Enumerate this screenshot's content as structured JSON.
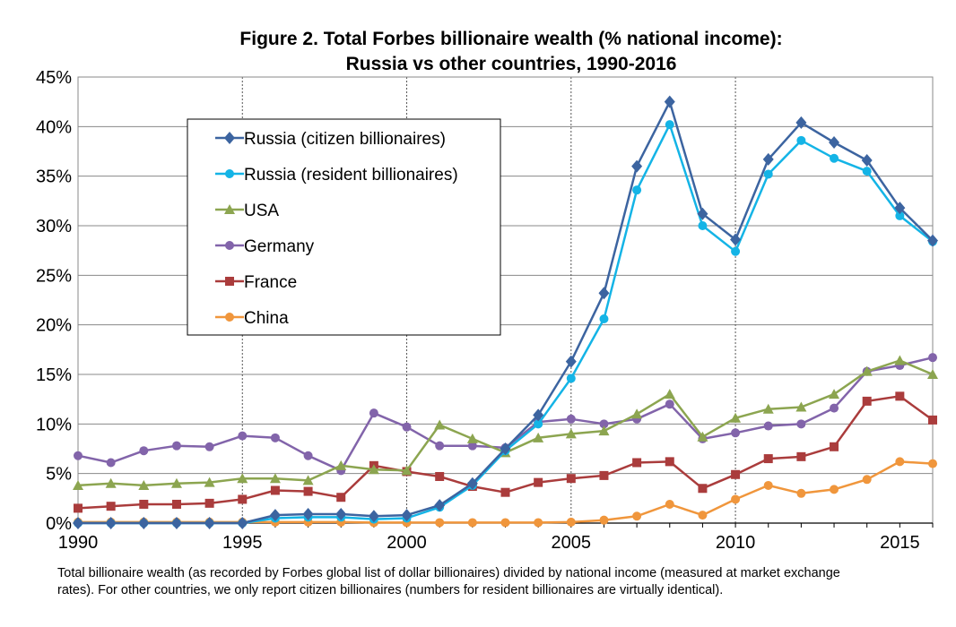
{
  "chart_data": {
    "type": "line",
    "title": "Figure 2. Total Forbes billionaire wealth  (% national income):",
    "subtitle": "Russia vs other countries, 1990-2016",
    "xlabel": "",
    "ylabel": "",
    "xlim": [
      1990,
      2016
    ],
    "ylim": [
      0,
      45
    ],
    "x_ticks": [
      1990,
      1995,
      2000,
      2005,
      2010,
      2015
    ],
    "x_tick_labels": [
      "1990",
      "1995",
      "2000",
      "2005",
      "2010",
      "2015"
    ],
    "y_ticks": [
      0,
      5,
      10,
      15,
      20,
      25,
      30,
      35,
      40,
      45
    ],
    "y_tick_labels": [
      "0%",
      "5%",
      "10%",
      "15%",
      "20%",
      "25%",
      "30%",
      "35%",
      "40%",
      "45%"
    ],
    "grid": "vertical dashed at 1995, 2000, 2005, 2010; horizontal solid at each y tick",
    "legend_position": "upper-left",
    "x": [
      1990,
      1991,
      1992,
      1993,
      1994,
      1995,
      1996,
      1997,
      1998,
      1999,
      2000,
      2001,
      2002,
      2003,
      2004,
      2005,
      2006,
      2007,
      2008,
      2009,
      2010,
      2011,
      2012,
      2013,
      2014,
      2015,
      2016
    ],
    "series": [
      {
        "name": "Russia (citizen billionaires)",
        "color": "#3C64A0",
        "marker": "diamond",
        "values": [
          0,
          0,
          0,
          0,
          0,
          0,
          0.8,
          0.9,
          0.9,
          0.7,
          0.8,
          1.8,
          4.0,
          7.5,
          10.9,
          16.3,
          23.2,
          36.0,
          42.5,
          31.2,
          28.6,
          36.7,
          40.4,
          38.4,
          36.6,
          31.8,
          28.5
        ]
      },
      {
        "name": "Russia (resident billionaires)",
        "color": "#14B4E6",
        "marker": "circle",
        "values": [
          0,
          0,
          0,
          0,
          0,
          0,
          0.5,
          0.6,
          0.6,
          0.4,
          0.5,
          1.6,
          3.8,
          7.3,
          10.0,
          14.6,
          20.6,
          33.6,
          40.2,
          30.0,
          27.4,
          35.2,
          38.6,
          36.8,
          35.5,
          31.0,
          28.4
        ]
      },
      {
        "name": "USA",
        "color": "#8CA550",
        "marker": "triangle",
        "values": [
          3.8,
          4.0,
          3.8,
          4.0,
          4.1,
          4.5,
          4.5,
          4.3,
          5.8,
          5.4,
          5.3,
          9.9,
          8.5,
          7.1,
          8.6,
          9.0,
          9.3,
          11.0,
          13.0,
          8.7,
          10.6,
          11.5,
          11.7,
          13.0,
          15.3,
          16.4,
          15.0
        ]
      },
      {
        "name": "Germany",
        "color": "#8264AA",
        "marker": "circle",
        "values": [
          6.8,
          6.1,
          7.3,
          7.8,
          7.7,
          8.8,
          8.6,
          6.8,
          5.3,
          11.1,
          9.7,
          7.8,
          7.8,
          7.6,
          10.2,
          10.5,
          10.0,
          10.5,
          12.0,
          8.5,
          9.1,
          9.8,
          10.0,
          11.6,
          15.3,
          15.9,
          16.7
        ]
      },
      {
        "name": "France",
        "color": "#AA3C3C",
        "marker": "square",
        "values": [
          1.5,
          1.7,
          1.9,
          1.9,
          2.0,
          2.4,
          3.3,
          3.2,
          2.6,
          5.8,
          5.2,
          4.7,
          3.7,
          3.1,
          4.1,
          4.5,
          4.8,
          6.1,
          6.2,
          3.5,
          4.9,
          6.5,
          6.7,
          7.7,
          12.3,
          12.8,
          10.4
        ]
      },
      {
        "name": "China",
        "color": "#F0963C",
        "marker": "circle",
        "values": [
          0.1,
          0.1,
          0.1,
          0.1,
          0.1,
          0.1,
          0.1,
          0.1,
          0.1,
          0.05,
          0.05,
          0.05,
          0.05,
          0.05,
          0.05,
          0.1,
          0.3,
          0.7,
          1.9,
          0.8,
          2.4,
          3.8,
          3.0,
          3.4,
          4.4,
          6.2,
          6.0
        ]
      }
    ]
  },
  "caption_lines": [
    "Total billionaire wealth (as recorded by Forbes global list of dollar billionaires) divided by national income (measured at market exchange",
    "rates). For other countries, we only report citizen billionaires (numbers for resident billionaires are virtually identical)."
  ]
}
